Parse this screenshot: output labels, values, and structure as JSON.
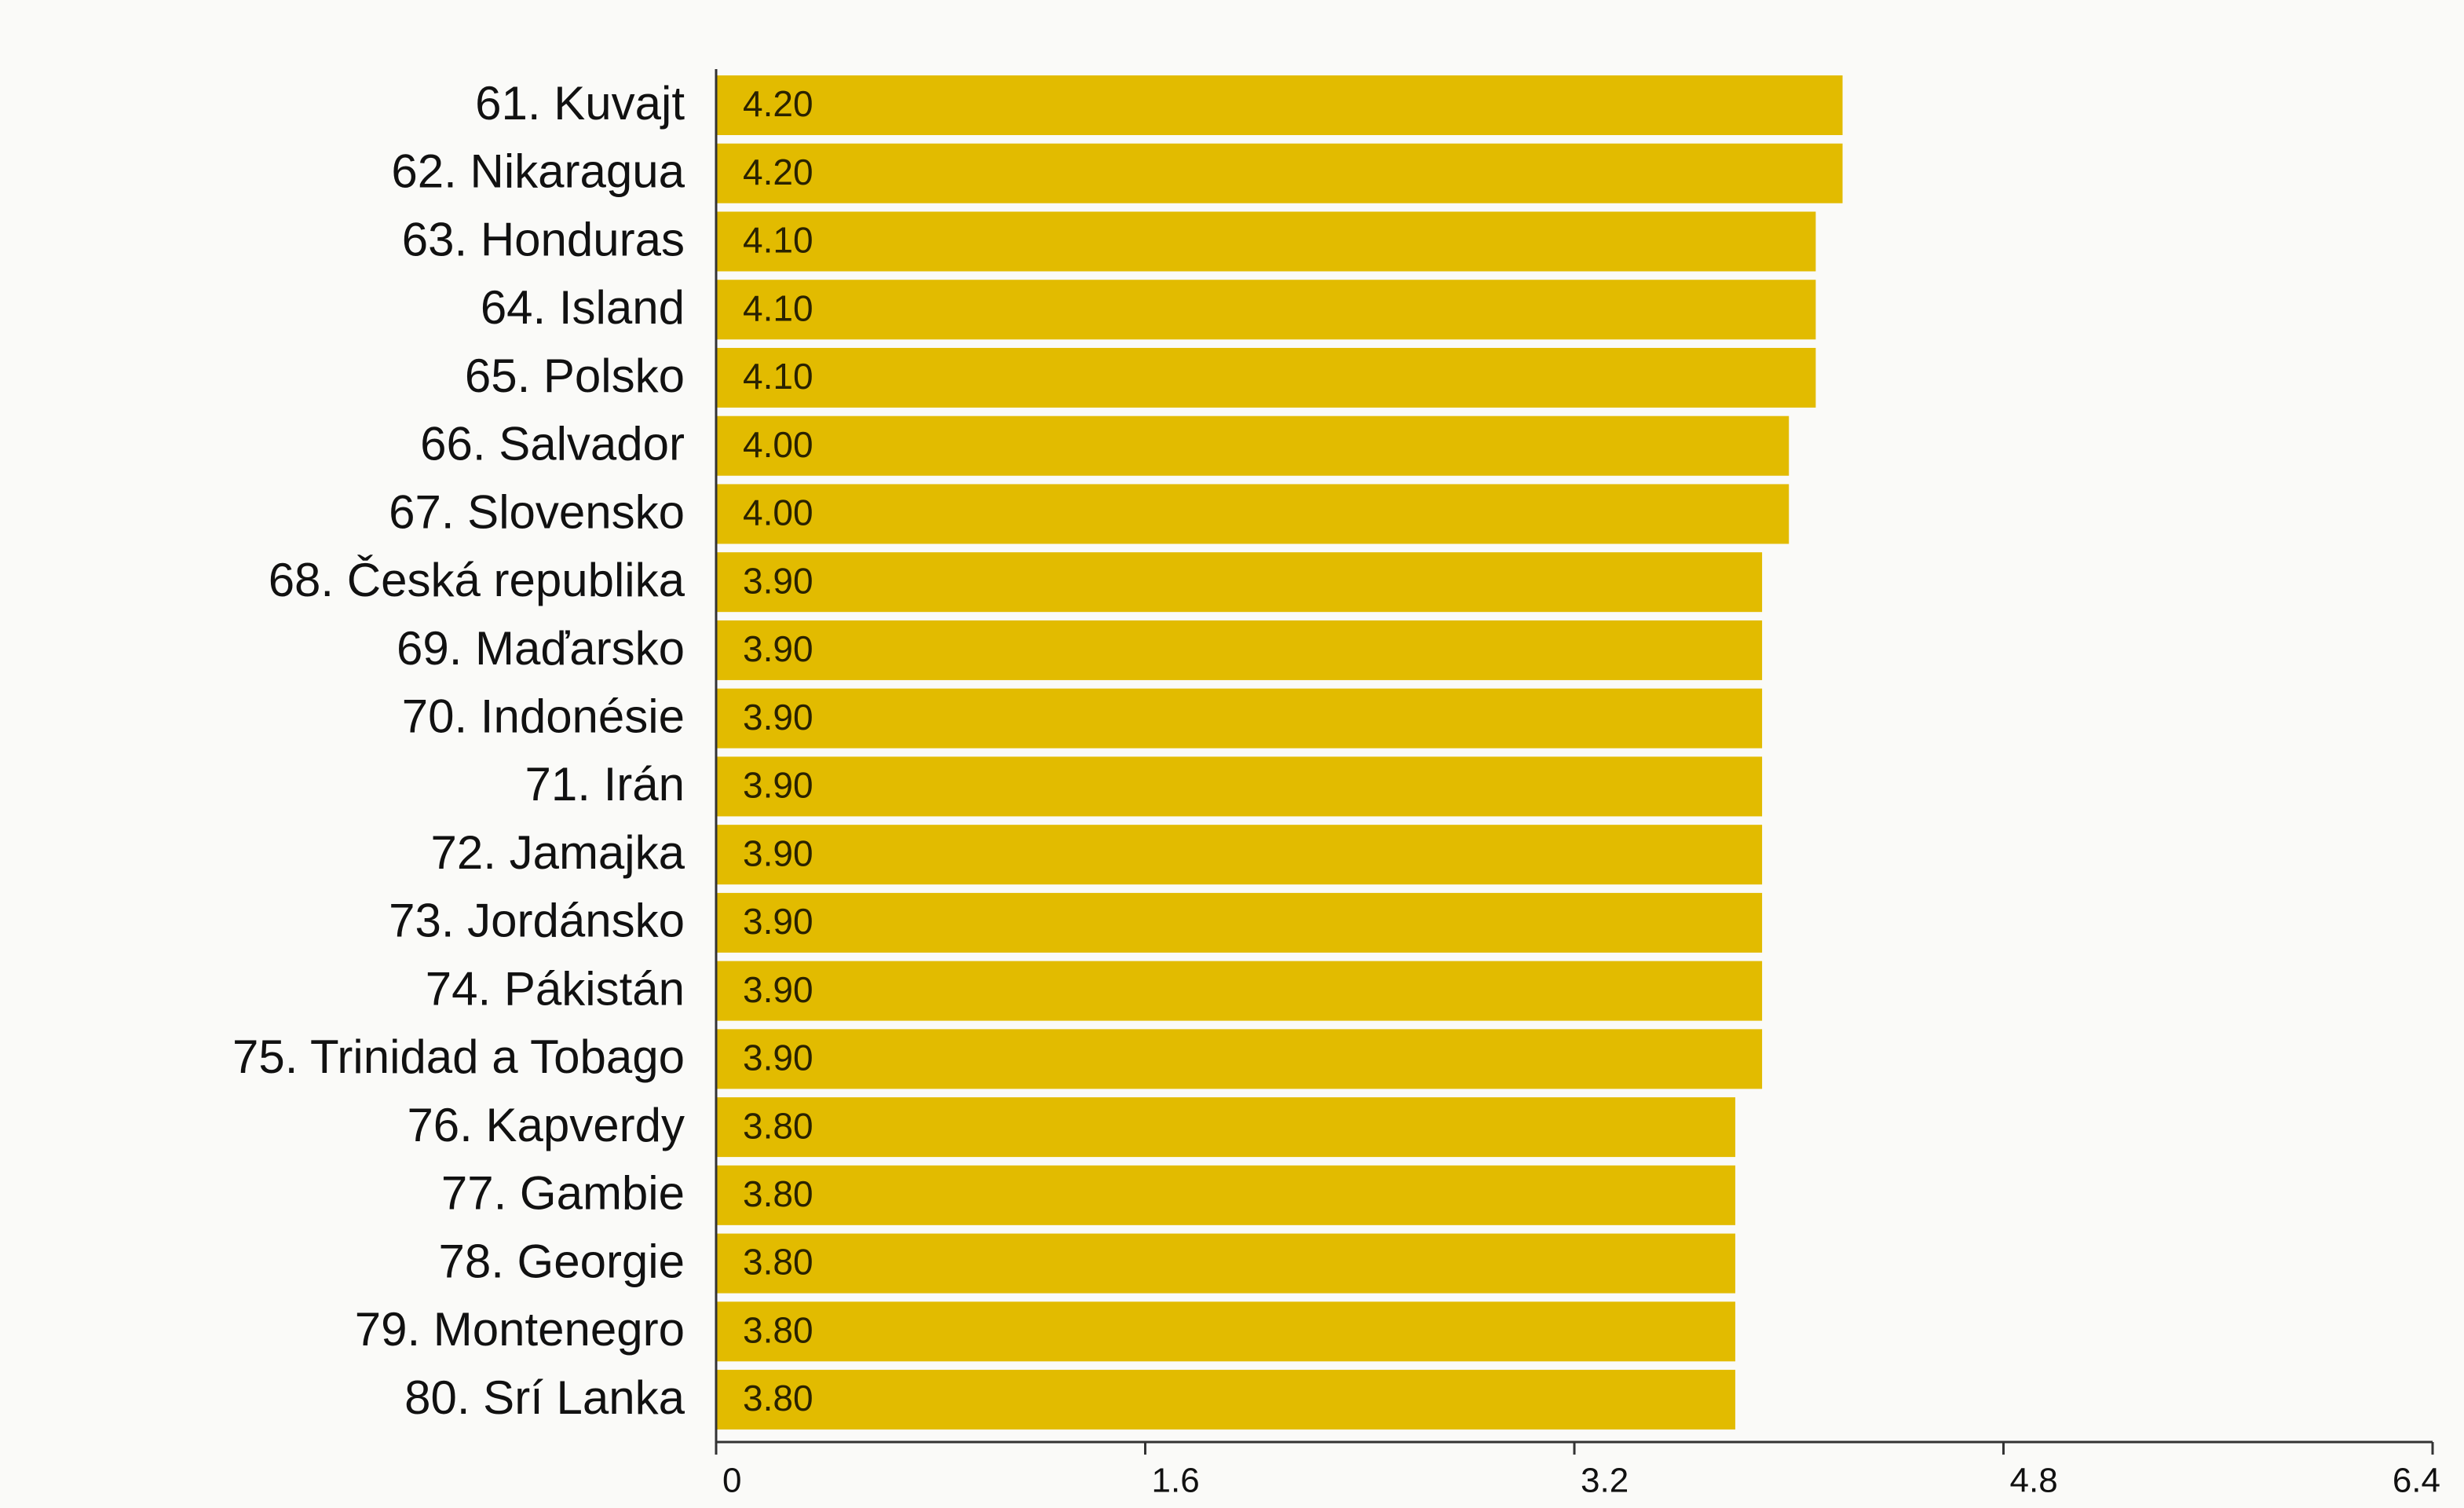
{
  "chart_data": {
    "type": "hbar",
    "categories": [
      "61. Kuvajt",
      "62. Nikaragua",
      "63. Honduras",
      "64. Island",
      "65. Polsko",
      "66. Salvador",
      "67. Slovensko",
      "68. Česká republika",
      "69. Maďarsko",
      "70. Indonésie",
      "71. Irán",
      "72. Jamajka",
      "73. Jordánsko",
      "74. Pákistán",
      "75. Trinidad a Tobago",
      "76. Kapverdy",
      "77. Gambie",
      "78. Georgie",
      "79. Montenegro",
      "80. Srí Lanka"
    ],
    "values": [
      4.2,
      4.2,
      4.1,
      4.1,
      4.1,
      4.0,
      4.0,
      3.9,
      3.9,
      3.9,
      3.9,
      3.9,
      3.9,
      3.9,
      3.9,
      3.8,
      3.8,
      3.8,
      3.8,
      3.8
    ],
    "value_labels": [
      "4.20",
      "4.20",
      "4.10",
      "4.10",
      "4.10",
      "4.00",
      "4.00",
      "3.90",
      "3.90",
      "3.90",
      "3.90",
      "3.90",
      "3.90",
      "3.90",
      "3.90",
      "3.80",
      "3.80",
      "3.80",
      "3.80",
      "3.80"
    ],
    "color": "#e2bb00",
    "xlim": [
      0,
      6.4
    ],
    "xticks": [
      0,
      1.6,
      3.2,
      4.8,
      6.4
    ]
  }
}
